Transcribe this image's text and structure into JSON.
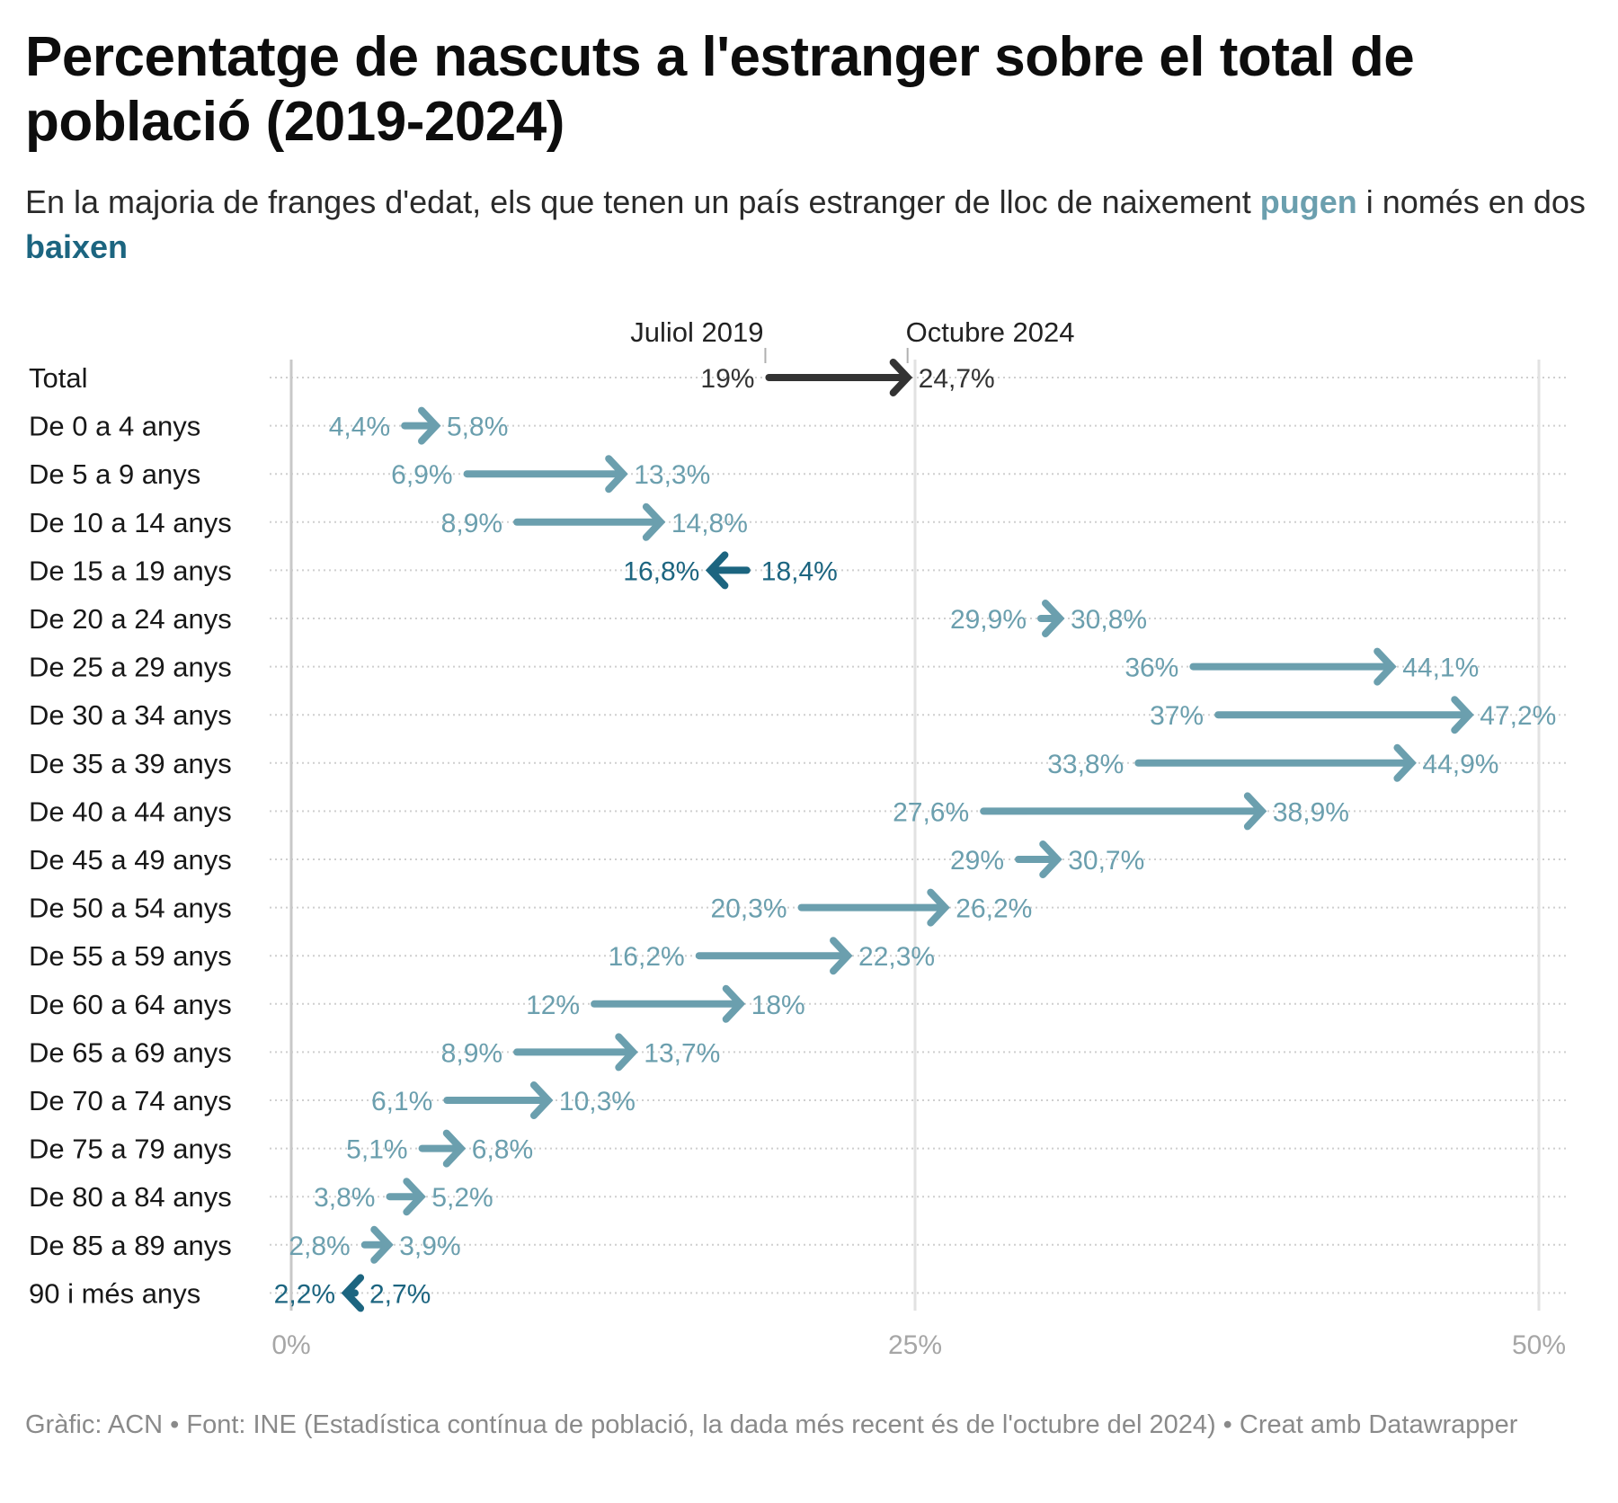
{
  "title": "Percentatge de nascuts a l'estranger sobre el total de població (2019-2024)",
  "subtitle": {
    "text_before": "En la majoria de franges d'edat, els que tenen un país estranger de lloc de naixement ",
    "up_word": "pugen",
    "text_middle": " i només en dos ",
    "down_word": "baixen"
  },
  "footer": "Gràfic: ACN • Font: INE (Estadística contínua de població, la dada més recent és de l'octubre del 2024) • Creat amb Datawrapper",
  "colors": {
    "up": "#6b9fae",
    "down": "#1c6580",
    "total": "#333333",
    "grid": "#e2e2e2",
    "axis": "#c8c8c8"
  },
  "chart_data": {
    "type": "arrow-plot",
    "title": "Percentatge de nascuts a l'estranger sobre el total de població (2019-2024)",
    "series_labels": {
      "start": "Juliol 2019",
      "end": "Octubre 2024"
    },
    "xlabel": "",
    "ylabel": "",
    "xlim": [
      0,
      50
    ],
    "x_ticks": [
      0,
      25,
      50
    ],
    "x_tick_labels": [
      "0%",
      "25%",
      "50%"
    ],
    "grid": true,
    "categories": [
      "Total",
      "De 0 a 4 anys",
      "De 5 a 9 anys",
      "De 10 a 14 anys",
      "De 15 a 19 anys",
      "De 20 a 24 anys",
      "De 25 a 29 anys",
      "De 30 a 34 anys",
      "De 35 a 39 anys",
      "De 40 a 44 anys",
      "De 45 a 49 anys",
      "De 50 a 54 anys",
      "De 55 a 59 anys",
      "De 60 a 64 anys",
      "De 65 a 69 anys",
      "De 70 a 74 anys",
      "De 75 a 79 anys",
      "De 80 a 84 anys",
      "De 85 a 89 anys",
      "90 i més anys"
    ],
    "series": [
      {
        "name": "Juliol 2019",
        "values": [
          19,
          4.4,
          6.9,
          8.9,
          18.4,
          29.9,
          36,
          37,
          33.8,
          27.6,
          29,
          20.3,
          16.2,
          12,
          8.9,
          6.1,
          5.1,
          3.8,
          2.8,
          2.7
        ]
      },
      {
        "name": "Octubre 2024",
        "values": [
          24.7,
          5.8,
          13.3,
          14.8,
          16.8,
          30.8,
          44.1,
          47.2,
          44.9,
          38.9,
          30.7,
          26.2,
          22.3,
          18,
          13.7,
          10.3,
          6.8,
          5.2,
          3.9,
          2.2
        ]
      }
    ],
    "start_labels": [
      "19%",
      "4,4%",
      "6,9%",
      "8,9%",
      "18,4%",
      "29,9%",
      "36%",
      "37%",
      "33,8%",
      "27,6%",
      "29%",
      "20,3%",
      "16,2%",
      "12%",
      "8,9%",
      "6,1%",
      "5,1%",
      "3,8%",
      "2,8%",
      "2,7%"
    ],
    "end_labels": [
      "24,7%",
      "5,8%",
      "13,3%",
      "14,8%",
      "16,8%",
      "30,8%",
      "44,1%",
      "47,2%",
      "44,9%",
      "38,9%",
      "30,7%",
      "26,2%",
      "22,3%",
      "18%",
      "13,7%",
      "10,3%",
      "6,8%",
      "5,2%",
      "3,9%",
      "2,2%"
    ]
  }
}
